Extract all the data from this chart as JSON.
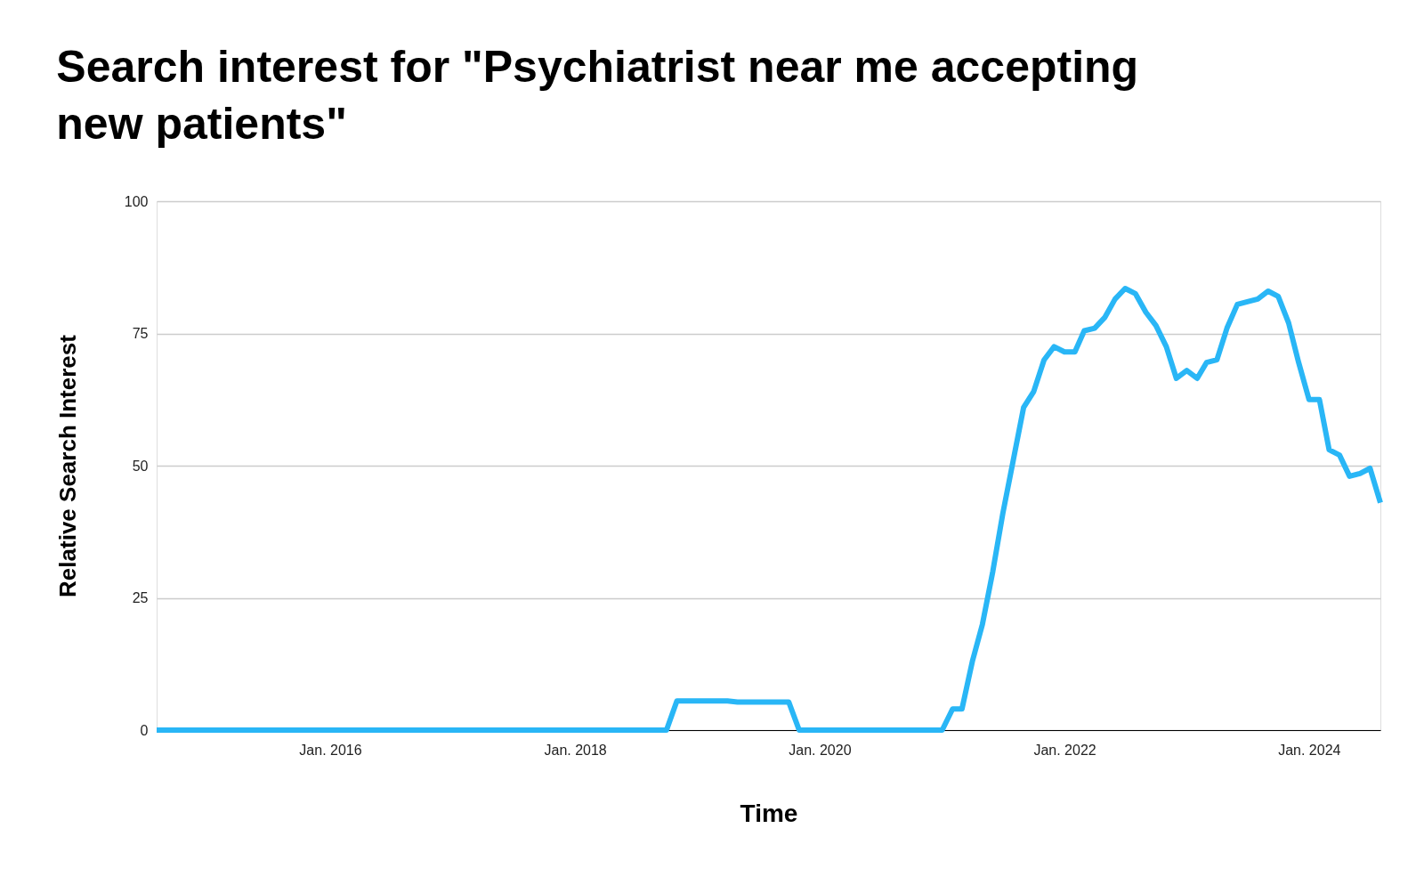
{
  "chart_data": {
    "type": "line",
    "title": "Search interest for \"Psychiatrist near me accepting new patients\"",
    "xlabel": "Time",
    "ylabel": "Relative Search Interest",
    "x": [
      "2014-08",
      "2014-09",
      "2014-10",
      "2014-11",
      "2014-12",
      "2015-01",
      "2015-02",
      "2015-03",
      "2015-04",
      "2015-05",
      "2015-06",
      "2015-07",
      "2015-08",
      "2015-09",
      "2015-10",
      "2015-11",
      "2015-12",
      "2016-01",
      "2016-02",
      "2016-03",
      "2016-04",
      "2016-05",
      "2016-06",
      "2016-07",
      "2016-08",
      "2016-09",
      "2016-10",
      "2016-11",
      "2016-12",
      "2017-01",
      "2017-02",
      "2017-03",
      "2017-04",
      "2017-05",
      "2017-06",
      "2017-07",
      "2017-08",
      "2017-09",
      "2017-10",
      "2017-11",
      "2017-12",
      "2018-01",
      "2018-02",
      "2018-03",
      "2018-04",
      "2018-05",
      "2018-06",
      "2018-07",
      "2018-08",
      "2018-09",
      "2018-10",
      "2018-11",
      "2018-12",
      "2019-01",
      "2019-02",
      "2019-03",
      "2019-04",
      "2019-05",
      "2019-06",
      "2019-07",
      "2019-08",
      "2019-09",
      "2019-10",
      "2019-11",
      "2019-12",
      "2020-01",
      "2020-02",
      "2020-03",
      "2020-04",
      "2020-05",
      "2020-06",
      "2020-07",
      "2020-08",
      "2020-09",
      "2020-10",
      "2020-11",
      "2020-12",
      "2021-01",
      "2021-02",
      "2021-03",
      "2021-04",
      "2021-05",
      "2021-06",
      "2021-07",
      "2021-08",
      "2021-09",
      "2021-10",
      "2021-11",
      "2021-12",
      "2022-01",
      "2022-02",
      "2022-03",
      "2022-04",
      "2022-05",
      "2022-06",
      "2022-07",
      "2022-08",
      "2022-09",
      "2022-10",
      "2022-11",
      "2022-12",
      "2023-01",
      "2023-02",
      "2023-03",
      "2023-04",
      "2023-05",
      "2023-06",
      "2023-07",
      "2023-08",
      "2023-09",
      "2023-10",
      "2023-11",
      "2023-12",
      "2024-01",
      "2024-02",
      "2024-03",
      "2024-04",
      "2024-05",
      "2024-06",
      "2024-07",
      "2024-08"
    ],
    "series": [
      {
        "color": "#29b6f6",
        "values": [
          0,
          0,
          0,
          0,
          0,
          0,
          0,
          0,
          0,
          0,
          0,
          0,
          0,
          0,
          0,
          0,
          0,
          0,
          0,
          0,
          0,
          0,
          0,
          0,
          0,
          0,
          0,
          0,
          0,
          0,
          0,
          0,
          0,
          0,
          0,
          0,
          0,
          0,
          0,
          0,
          0,
          0,
          0,
          0,
          0,
          0,
          0,
          0,
          0,
          0,
          0,
          5.5,
          5.5,
          5.5,
          5.5,
          5.5,
          5.5,
          5.3,
          5.3,
          5.3,
          5.3,
          5.3,
          5.3,
          0,
          0,
          0,
          0,
          0,
          0,
          0,
          0,
          0,
          0,
          0,
          0,
          0,
          0,
          0,
          4,
          4,
          13,
          20,
          30,
          41,
          51,
          61,
          64,
          70,
          72.5,
          71.5,
          71.5,
          75.5,
          76,
          78,
          81.5,
          83.5,
          82.5,
          79,
          76.5,
          72.5,
          66.5,
          68,
          66.5,
          69.5,
          70,
          76,
          80.5,
          81,
          81.5,
          83,
          82,
          77,
          69.5,
          62.5,
          62.5,
          53,
          52,
          48,
          48.5,
          49.5,
          43
        ]
      }
    ],
    "xlim": [
      "2014-08",
      "2024-08"
    ],
    "xticks": [
      {
        "value": "2016-01",
        "label": "Jan. 2016"
      },
      {
        "value": "2018-01",
        "label": "Jan. 2018"
      },
      {
        "value": "2020-01",
        "label": "Jan. 2020"
      },
      {
        "value": "2022-01",
        "label": "Jan. 2022"
      },
      {
        "value": "2024-01",
        "label": "Jan. 2024"
      }
    ],
    "ylim": [
      0,
      100
    ],
    "yticks": [
      0,
      25,
      50,
      75,
      100
    ],
    "grid": "y",
    "marker": "none",
    "line_style": "solid"
  }
}
